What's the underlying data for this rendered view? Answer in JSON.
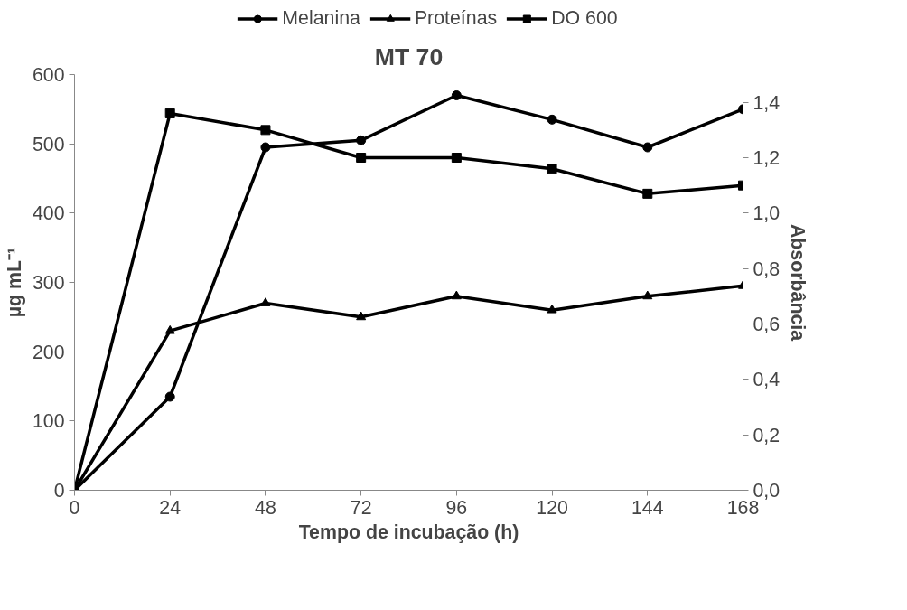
{
  "chart_data": {
    "type": "line",
    "title": "MT 70",
    "xlabel": "Tempo de incubação (h)",
    "ylabel": "µg mL⁻¹",
    "y2label": "Absorbância",
    "x": [
      0,
      24,
      48,
      72,
      96,
      120,
      144,
      168
    ],
    "series": [
      {
        "name": "Melanina",
        "color": "#000000",
        "marker": "circle",
        "values": [
          0,
          135,
          495,
          505,
          570,
          535,
          495,
          550
        ]
      },
      {
        "name": "Proteínas",
        "color": "#000000",
        "marker": "triangle",
        "values": [
          0,
          230,
          270,
          250,
          280,
          260,
          280,
          295
        ]
      },
      {
        "name": "DO 600",
        "color": "#000000",
        "marker": "square",
        "axis": "y2",
        "values": [
          0,
          1.36,
          1.3,
          1.2,
          1.2,
          1.16,
          1.07,
          1.1
        ]
      }
    ],
    "xlim": [
      0,
      168
    ],
    "xticks": [
      0,
      24,
      48,
      72,
      96,
      120,
      144,
      168
    ],
    "ylim": [
      0,
      600
    ],
    "yticks": [
      0,
      100,
      200,
      300,
      400,
      500,
      600
    ],
    "y2lim": [
      0,
      1.5
    ],
    "y2ticks": [
      {
        "value": 0,
        "label": "0,0"
      },
      {
        "value": 0.2,
        "label": "0,2"
      },
      {
        "value": 0.4,
        "label": "0,4"
      },
      {
        "value": 0.6,
        "label": "0,6"
      },
      {
        "value": 0.8,
        "label": "0,8"
      },
      {
        "value": 1.0,
        "label": "1,0"
      },
      {
        "value": 1.2,
        "label": "1,2"
      },
      {
        "value": 1.4,
        "label": "1,4"
      }
    ],
    "grid": false,
    "legend": "top",
    "line_style": "solid"
  }
}
